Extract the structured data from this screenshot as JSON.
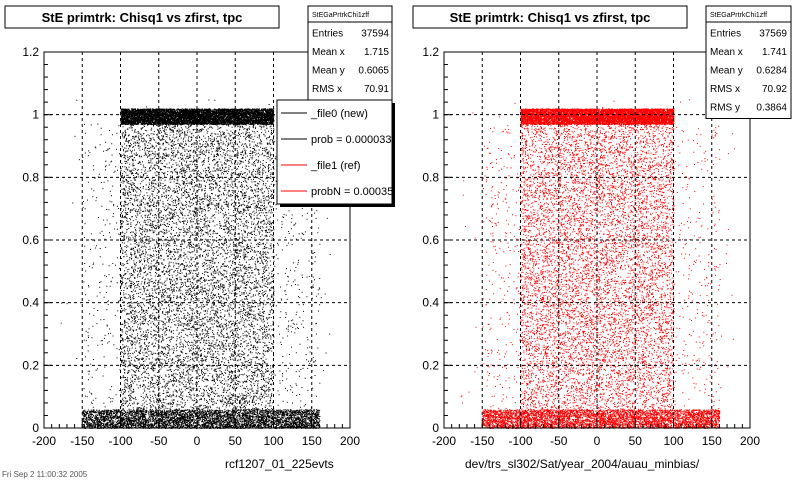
{
  "footer_text": "Fri Sep  2 11:00:32 2005",
  "chart_data": [
    {
      "type": "scatter",
      "title": "StE primtrk: Chisq1 vs zfirst, tpc",
      "xlabel": "rcf1207_01_225evts",
      "ylabel": "",
      "xlim": [
        -200,
        200
      ],
      "ylim": [
        0,
        1.2
      ],
      "xticks": [
        -200,
        -150,
        -100,
        -50,
        0,
        50,
        100,
        150,
        200
      ],
      "yticks": [
        0,
        0.2,
        0.4,
        0.6,
        0.8,
        1,
        1.2
      ],
      "grid": true,
      "marker_color": "#000000",
      "stats": {
        "name": "StEGaPrtrkChi1zff",
        "rows": [
          {
            "label": "Entries",
            "value": "37594"
          },
          {
            "label": "Mean x",
            "value": "1.715"
          },
          {
            "label": "Mean y",
            "value": "0.6065"
          },
          {
            "label": "RMS x",
            "value": "70.91"
          }
        ]
      },
      "legend": {
        "placement": "top-right",
        "entries": [
          {
            "label": "_file0 (new)",
            "color": "#000000"
          },
          {
            "label": "prob = 0.000033",
            "color": "#000000"
          },
          {
            "label": "_file1 (ref)",
            "color": "#ff0000"
          },
          {
            "label": "probN = 0.00035",
            "color": "#ff0000"
          }
        ]
      },
      "distribution": {
        "x_core": [
          -100,
          100
        ],
        "x_extent": [
          -150,
          160
        ],
        "y_peak_band": [
          0.97,
          1.02
        ],
        "y_low_band": [
          0,
          0.06
        ]
      }
    },
    {
      "type": "scatter",
      "title": "StE primtrk: Chisq1 vs zfirst, tpc",
      "xlabel": "dev/trs_sl302/Sat/year_2004/auau_minbias/",
      "ylabel": "",
      "xlim": [
        -200,
        200
      ],
      "ylim": [
        0,
        1.2
      ],
      "xticks": [
        -200,
        -150,
        -100,
        -50,
        0,
        50,
        100,
        150,
        200
      ],
      "yticks": [
        0,
        0.2,
        0.4,
        0.6,
        0.8,
        1,
        1.2
      ],
      "grid": true,
      "marker_color": "#ff0000",
      "stats": {
        "name": "StEGaPrtrkChi1zff",
        "rows": [
          {
            "label": "Entries",
            "value": "37569"
          },
          {
            "label": "Mean x",
            "value": "1.741"
          },
          {
            "label": "Mean y",
            "value": "0.6284"
          },
          {
            "label": "RMS x",
            "value": "70.92"
          },
          {
            "label": "RMS y",
            "value": "0.3864"
          }
        ]
      },
      "distribution": {
        "x_core": [
          -100,
          100
        ],
        "x_extent": [
          -150,
          160
        ],
        "y_peak_band": [
          0.97,
          1.02
        ],
        "y_low_band": [
          0,
          0.06
        ]
      }
    }
  ]
}
